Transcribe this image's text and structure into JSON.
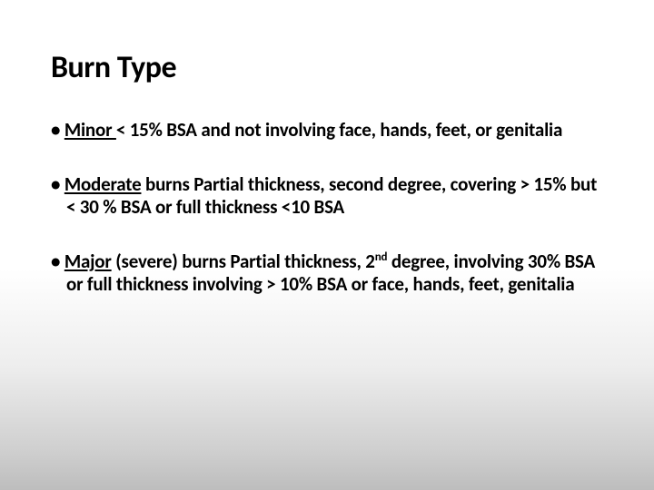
{
  "slide": {
    "title": "Burn Type",
    "title_fontsize": 34,
    "title_color": "#000000",
    "background_gradient": {
      "top": "#ffffff",
      "mid": "#ededed",
      "bottom": "#bdbdbd"
    },
    "bullet_fontsize": 21,
    "bullet_color": "#000000",
    "bullets": [
      {
        "term": "Minor ",
        "rest": "< 15% BSA and not involving face, hands, feet, or genitalia"
      },
      {
        "term": "Moderate",
        "rest": " burns Partial thickness, second degree, covering > 15% but < 30 % BSA or full thickness <10 BSA"
      },
      {
        "term": "Major",
        "rest_before_sup": " (severe) burns Partial thickness, 2",
        "sup": "nd",
        "rest_after_sup": " degree, involving 30% BSA or full thickness involving > 10% BSA or face, hands, feet, genitalia"
      }
    ]
  }
}
